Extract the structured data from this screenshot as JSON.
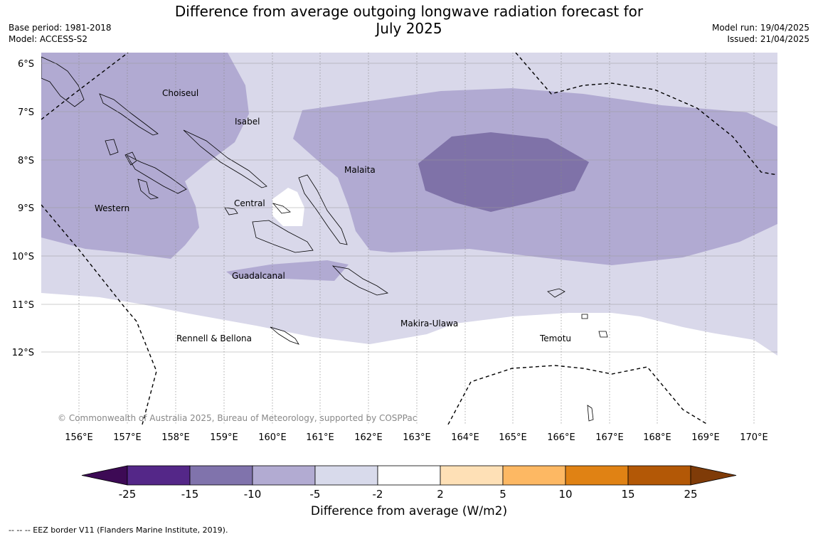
{
  "title": {
    "line1": "Difference from average outgoing longwave radiation forecast for",
    "line2": "July 2025"
  },
  "meta_left": {
    "base_period": "Base period: 1981-2018",
    "model": "Model: ACCESS-S2"
  },
  "meta_right": {
    "model_run": "Model run: 19/04/2025",
    "issued": "Issued: 21/04/2025"
  },
  "map": {
    "lat_labels": [
      "6°S",
      "7°S",
      "8°S",
      "9°S",
      "10°S",
      "11°S",
      "12°S"
    ],
    "lon_labels": [
      "156°E",
      "157°E",
      "158°E",
      "159°E",
      "160°E",
      "161°E",
      "162°E",
      "163°E",
      "164°E",
      "165°E",
      "166°E",
      "167°E",
      "168°E",
      "169°E",
      "170°E"
    ],
    "province_labels": [
      "Choiseul",
      "Isabel",
      "Malaita",
      "Western",
      "Central",
      "Guadalcanal",
      "Makira-Ulawa",
      "Rennell & Bellona",
      "Temotu"
    ],
    "copyright": "© Commonwealth of Australia 2025, Bureau of Meteorology, supported by COSPPac",
    "fill_colors": {
      "-15_to_-10": "#7f72a8",
      "-10_to_-5": "#b1aad2",
      "-5_to_-2": "#d9d8ea",
      "-2_to_2": "#ffffff"
    }
  },
  "colorbar": {
    "ticks": [
      "-25",
      "-15",
      "-10",
      "-5",
      "-2",
      "2",
      "5",
      "10",
      "15",
      "25"
    ],
    "colors": [
      "#3d0a55",
      "#542788",
      "#8073ac",
      "#b2abd2",
      "#d8daeb",
      "#ffffff",
      "#fee0b6",
      "#fdb863",
      "#e08214",
      "#b35806",
      "#7f3b08"
    ],
    "label": "Difference from average (W/m2)"
  },
  "footnote": "--  --  -- EEZ border V11 (Flanders Marine Institute, 2019)."
}
